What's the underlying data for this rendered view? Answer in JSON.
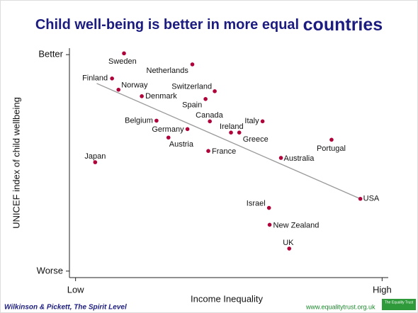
{
  "chart_data": {
    "type": "scatter",
    "title": {
      "main": "Child well-being is better in more equal",
      "emphasis": "countries"
    },
    "x_label": "Income Inequality",
    "y_label": "UNICEF index of child wellbeing",
    "color": "#b0003a",
    "labels": [
      "Sweden",
      "Netherlands",
      "Finland",
      "Norway",
      "Denmark",
      "Switzerland",
      "Spain",
      "Canada",
      "Italy",
      "Ireland",
      "Greece",
      "Belgium",
      "Germany",
      "Austria",
      "France",
      "Portugal",
      "Australia",
      "Japan",
      "USA",
      "Israel",
      "New Zealand",
      "UK"
    ],
    "x": [
      15.8,
      38.1,
      11.9,
      14.0,
      21.6,
      45.4,
      42.4,
      43.8,
      61.0,
      50.7,
      53.4,
      26.4,
      36.5,
      30.3,
      43.3,
      83.5,
      67.0,
      6.4,
      92.9,
      63.1,
      63.3,
      69.7
    ],
    "values": [
      100.6,
      95.5,
      89.0,
      83.8,
      80.8,
      83.1,
      79.5,
      69.2,
      69.2,
      64.0,
      64.0,
      69.5,
      65.6,
      61.7,
      55.5,
      60.7,
      52.3,
      50.3,
      33.4,
      29.2,
      21.4,
      10.4
    ],
    "trend": {
      "x": [
        6.9,
        92.9
      ],
      "values": [
        86.7,
        33.4
      ],
      "color": "#999999"
    },
    "xlim": [
      -2,
      102
    ],
    "ylim": [
      -3,
      103
    ],
    "xticks": [
      {
        "value": 0,
        "label": "Low"
      },
      {
        "value": 100,
        "label": "High"
      }
    ],
    "yticks": [
      {
        "value": 0,
        "label": "Worse"
      },
      {
        "value": 100,
        "label": "Better"
      }
    ],
    "source": "Wilkinson & Pickett, The Spirit Level",
    "website": "www.equalitytrust.org.uk",
    "logo": "The Equality Trust"
  }
}
